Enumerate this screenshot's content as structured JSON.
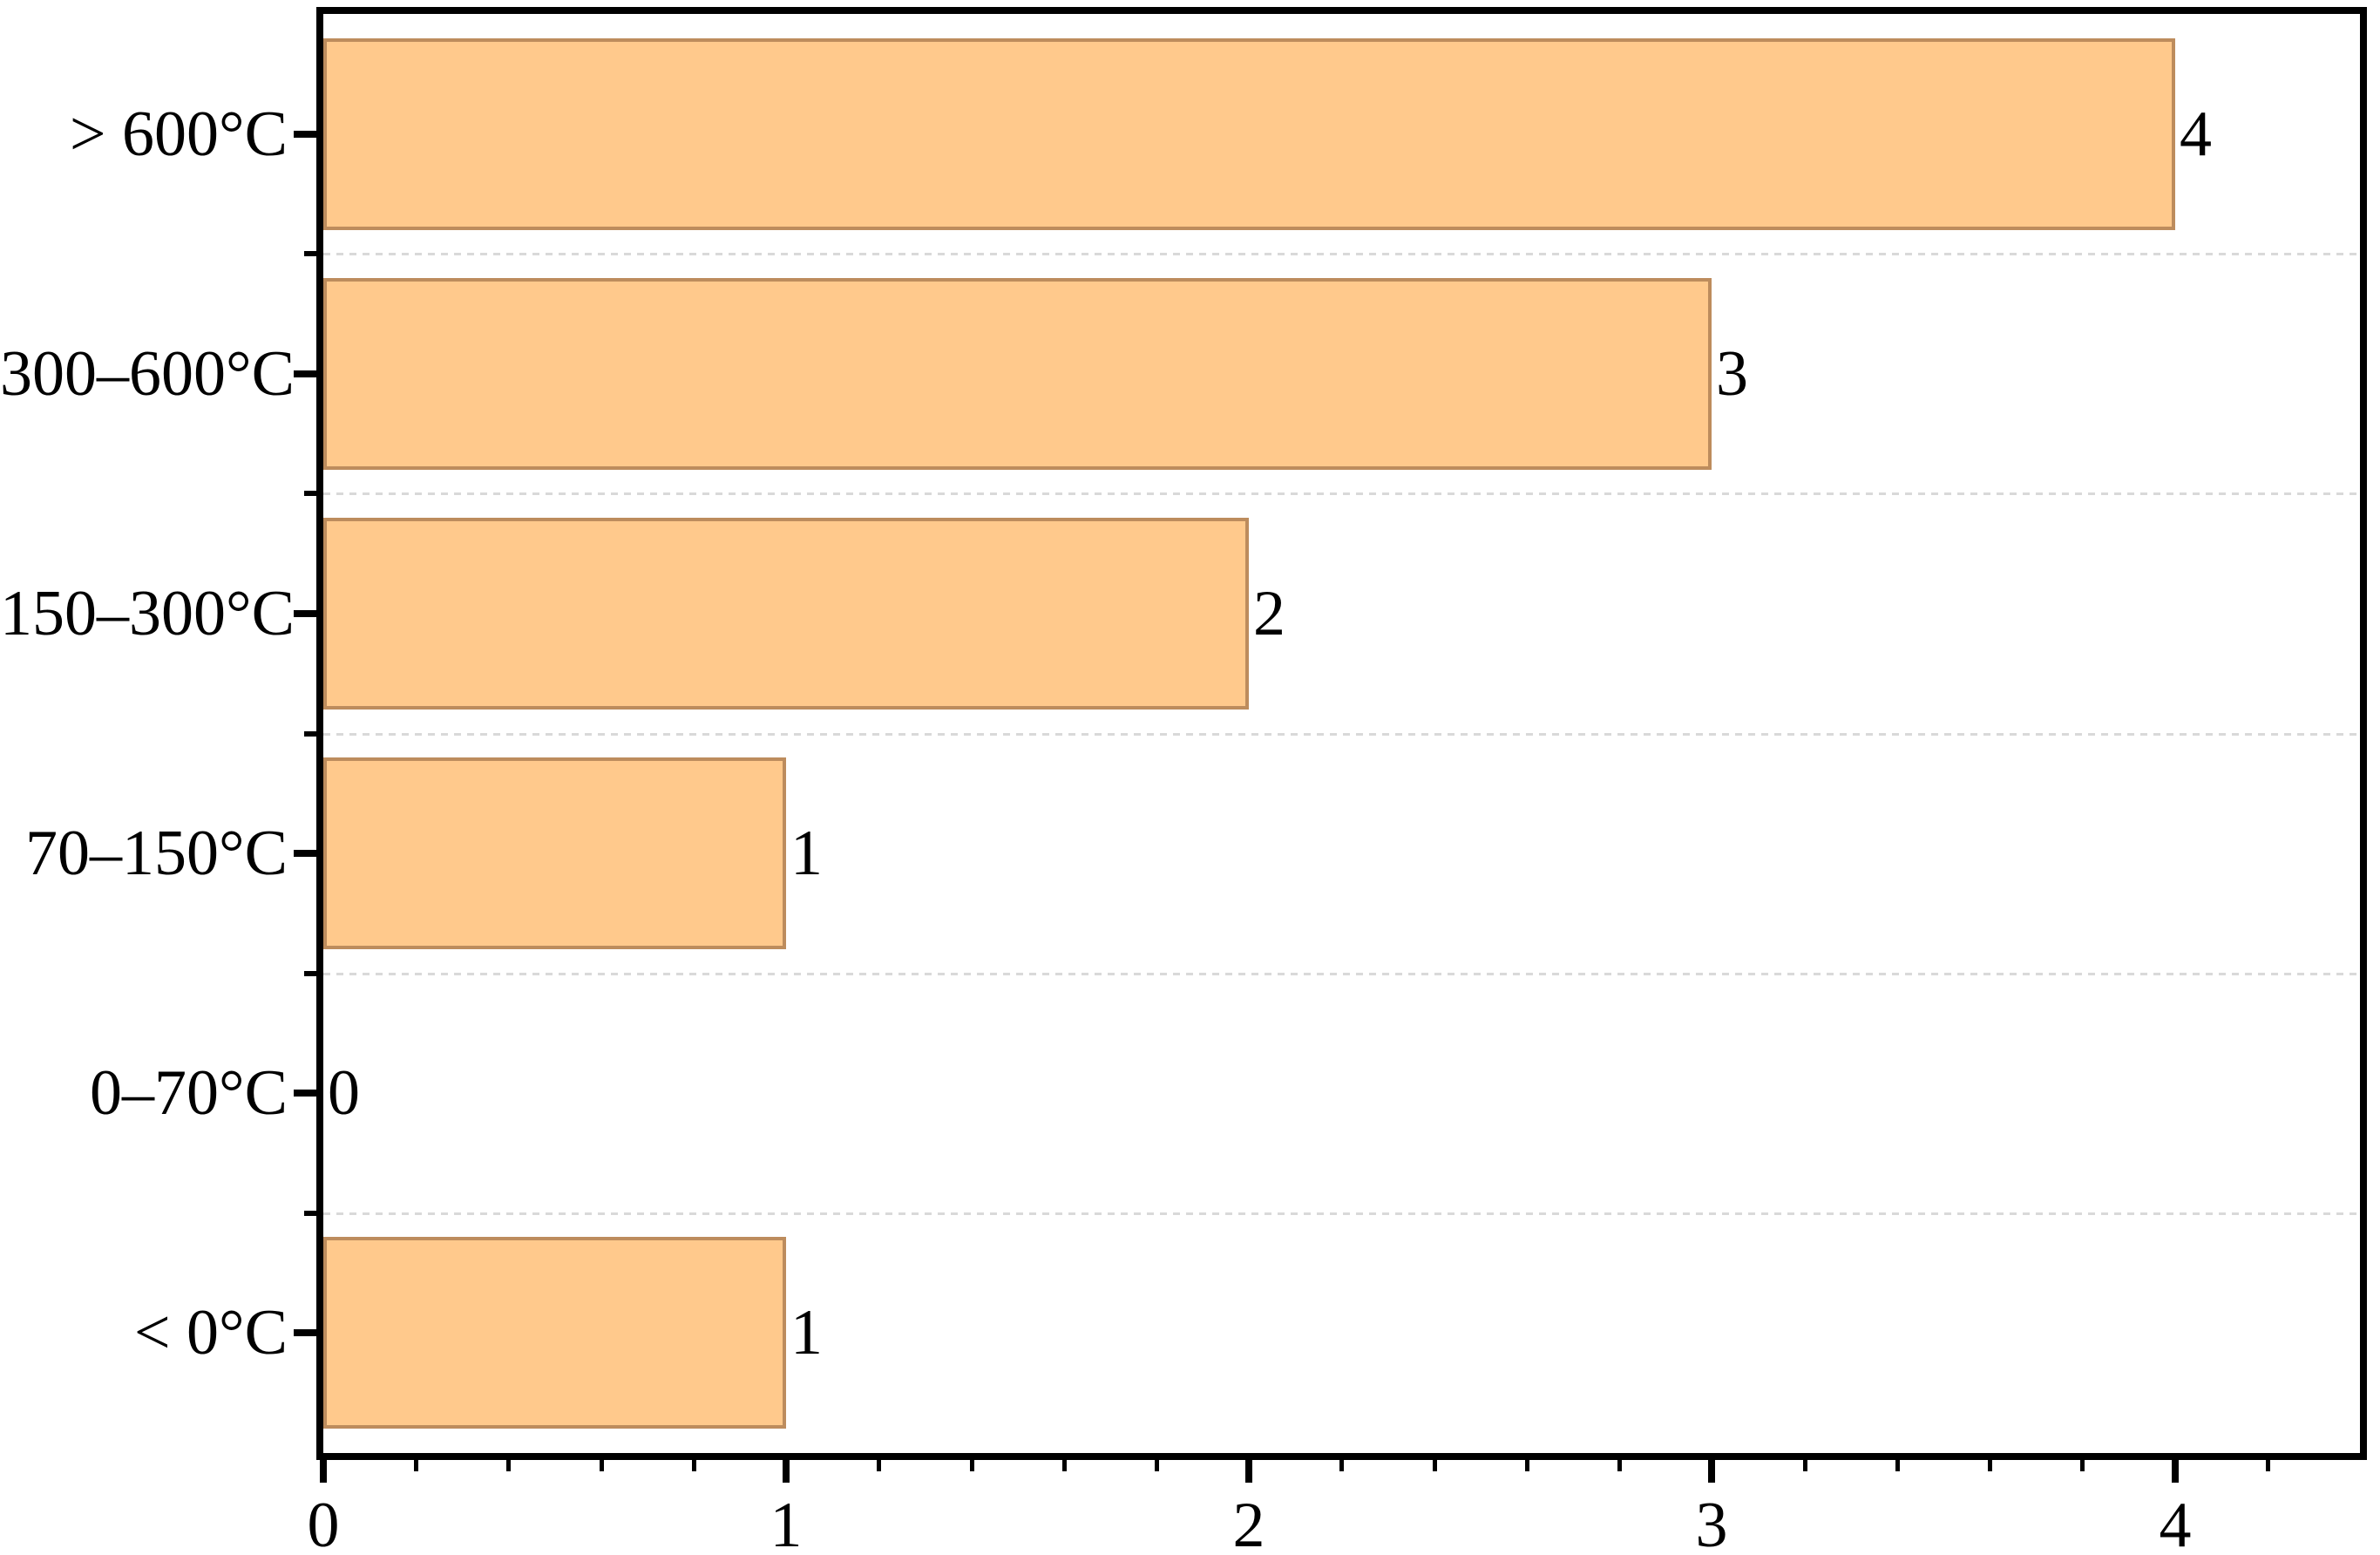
{
  "chart_data": {
    "type": "bar",
    "orientation": "horizontal",
    "title": "",
    "xlabel": "",
    "ylabel": "",
    "categories": [
      "> 600°C",
      "300–600°C",
      "150–300°C",
      "70–150°C",
      "0–70°C",
      "< 0°C"
    ],
    "values": [
      4,
      3,
      2,
      1,
      0,
      1
    ],
    "bar_value_labels": [
      "4",
      "3",
      "2",
      "1",
      "0",
      "1"
    ],
    "x_major_ticks": [
      0,
      1,
      2,
      3,
      4
    ],
    "x_major_tick_labels": [
      "0",
      "1",
      "2",
      "3",
      "4"
    ],
    "x_minor_tick_step": 0.2,
    "xlim": [
      0,
      4.4
    ],
    "grid": "horizontal dashed lines at category boundaries",
    "legend": "none",
    "colors": {
      "bar_fill": "#FFC98C",
      "bar_edge": "#BD8C5D",
      "gridline": "#D9D9D9",
      "axis": "#000000",
      "text": "#000000",
      "background": "#FFFFFF"
    }
  }
}
